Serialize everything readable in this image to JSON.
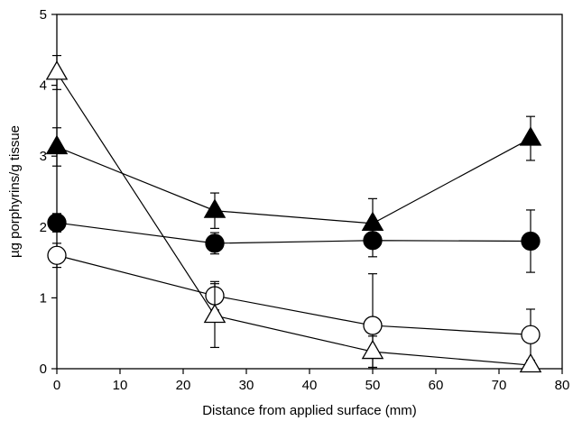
{
  "chart_data": {
    "type": "scatter",
    "title": "",
    "xlabel": "Distance from applied surface (mm)",
    "ylabel": "µg porphyrins/g tissue",
    "xlim": [
      0,
      80
    ],
    "ylim": [
      0,
      5
    ],
    "xticks": [
      0,
      10,
      20,
      30,
      40,
      50,
      60,
      70,
      80
    ],
    "yticks": [
      0,
      1,
      2,
      3,
      4,
      5
    ],
    "grid": false,
    "legend": "none",
    "x": [
      0,
      25,
      50,
      75
    ],
    "series": [
      {
        "marker": "filled-triangle",
        "values": [
          3.13,
          2.23,
          2.05,
          3.25
        ],
        "error": [
          0.27,
          0.25,
          0.35,
          0.31
        ]
      },
      {
        "marker": "filled-circle",
        "values": [
          2.06,
          1.77,
          1.81,
          1.8
        ],
        "error": [
          0.13,
          0.15,
          0.23,
          0.44
        ]
      },
      {
        "marker": "open-circle",
        "values": [
          1.6,
          1.03,
          0.61,
          0.48
        ],
        "error": [
          0.17,
          0.2,
          0.73,
          0.36
        ]
      },
      {
        "marker": "open-triangle",
        "values": [
          4.18,
          0.75,
          0.24,
          0.05
        ],
        "error": [
          0.24,
          0.45,
          0.22,
          0.05
        ]
      }
    ],
    "colors": {
      "ink": "#000000",
      "background": "#ffffff"
    }
  }
}
